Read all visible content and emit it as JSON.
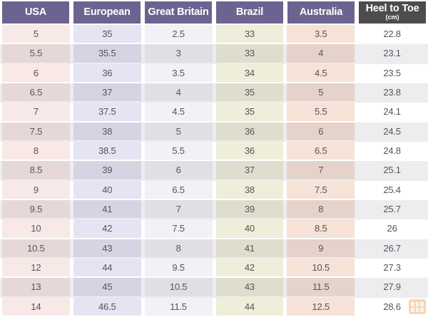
{
  "chart_data": {
    "type": "table",
    "columns": [
      {
        "label": "USA",
        "sublabel": "",
        "header_bg": "#6c6390",
        "cell_bg": "#f8e9e6"
      },
      {
        "label": "European",
        "sublabel": "",
        "header_bg": "#6c6390",
        "cell_bg": "#e5e4f2"
      },
      {
        "label": "Great Britain",
        "sublabel": "",
        "header_bg": "#6c6390",
        "cell_bg": "#f1f1f6"
      },
      {
        "label": "Brazil",
        "sublabel": "",
        "header_bg": "#6c6390",
        "cell_bg": "#efeeda"
      },
      {
        "label": "Australia",
        "sublabel": "",
        "header_bg": "#6c6390",
        "cell_bg": "#f6e2d7"
      },
      {
        "label": "Heel to Toe",
        "sublabel": "(cm)",
        "header_bg": "#4d4b4c",
        "cell_bg": "#ffffff"
      }
    ],
    "rows": [
      [
        "5",
        "35",
        "2.5",
        "33",
        "3.5",
        "22.8"
      ],
      [
        "5.5",
        "35.5",
        "3",
        "33",
        "4",
        "23.1"
      ],
      [
        "6",
        "36",
        "3.5",
        "34",
        "4.5",
        "23.5"
      ],
      [
        "6.5",
        "37",
        "4",
        "35",
        "5",
        "23.8"
      ],
      [
        "7",
        "37.5",
        "4.5",
        "35",
        "5.5",
        "24.1"
      ],
      [
        "7.5",
        "38",
        "5",
        "36",
        "6",
        "24.5"
      ],
      [
        "8",
        "38.5",
        "5.5",
        "36",
        "6.5",
        "24.8"
      ],
      [
        "8.5",
        "39",
        "6",
        "37",
        "7",
        "25.1"
      ],
      [
        "9",
        "40",
        "6.5",
        "38",
        "7.5",
        "25.4"
      ],
      [
        "9.5",
        "41",
        "7",
        "39",
        "8",
        "25.7"
      ],
      [
        "10",
        "42",
        "7.5",
        "40",
        "8.5",
        "26"
      ],
      [
        "10.5",
        "43",
        "8",
        "41",
        "9",
        "26.7"
      ],
      [
        "12",
        "44",
        "9.5",
        "42",
        "10.5",
        "27.3"
      ],
      [
        "13",
        "45",
        "10.5",
        "43",
        "11.5",
        "27.9"
      ],
      [
        "14",
        "46.5",
        "11.5",
        "44",
        "12.5",
        "28.6"
      ]
    ],
    "layout_hints": {
      "shaded_row_overlay": "rgba(104,98,114,0.12)",
      "text_color": "#565458",
      "gap_color": "#ffffff",
      "shaded_rows": "every second row starting with row 2"
    }
  },
  "watermark": {
    "icon": "grid-logo-icon",
    "color": "#f0a45f"
  }
}
